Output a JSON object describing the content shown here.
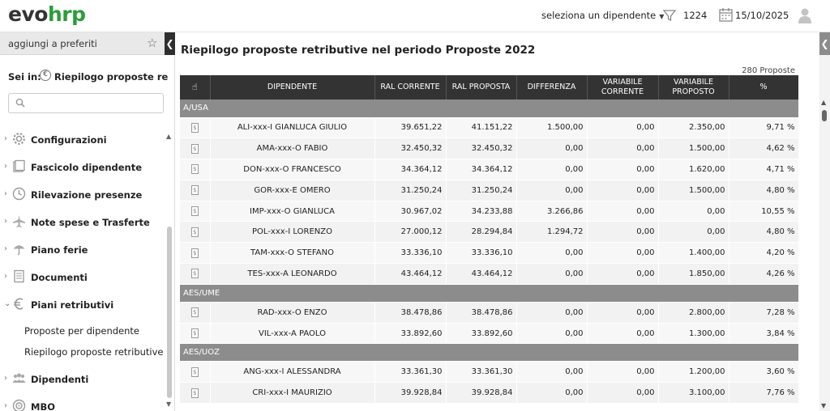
{
  "app": {
    "logo_main": "evo",
    "logo_accent": "hrp"
  },
  "header": {
    "employee_select": "seleziona un dipendente",
    "filter_count": "1224",
    "date": "15/10/2025"
  },
  "sidebar": {
    "favorites_label": "aggiungi a preferiti",
    "sei_in_label": "Sei in:",
    "sei_in_target": "Riepilogo proposte retributive",
    "search_placeholder": "",
    "items": [
      {
        "label": "Configurazioni",
        "icon": "gear-icon"
      },
      {
        "label": "Fascicolo dipendente",
        "icon": "folder-icon"
      },
      {
        "label": "Rilevazione presenze",
        "icon": "clock-icon"
      },
      {
        "label": "Note spese e Trasferte",
        "icon": "plane-icon"
      },
      {
        "label": "Piano ferie",
        "icon": "umbrella-icon"
      },
      {
        "label": "Documenti",
        "icon": "document-icon"
      },
      {
        "label": "Piani retributivi",
        "icon": "euro-icon"
      },
      {
        "label": "Dipendenti",
        "icon": "people-icon"
      },
      {
        "label": "MBO",
        "icon": "target-icon"
      }
    ],
    "sub_items": [
      "Proposte per dipendente",
      "Riepilogo proposte retributive"
    ]
  },
  "main": {
    "title": "Riepilogo proposte retributive nel periodo Proposte 2022",
    "count": "280 Proposte",
    "columns": [
      "DIPENDENTE",
      "RAL CORRENTE",
      "RAL PROPOSTA",
      "DIFFERENZA",
      "VARIABILE CORRENTE",
      "VARIABILE PROPOSTO",
      "%"
    ],
    "groups": [
      {
        "name": "A/USA",
        "rows": [
          [
            "ALI-xxx-I GIANLUCA GIULIO",
            "39.651,22",
            "41.151,22",
            "1.500,00",
            "0,00",
            "2.350,00",
            "9,71 %"
          ],
          [
            "AMA-xxx-O FABIO",
            "32.450,32",
            "32.450,32",
            "0,00",
            "0,00",
            "1.500,00",
            "4,62 %"
          ],
          [
            "DON-xxx-O FRANCESCO",
            "34.364,12",
            "34.364,12",
            "0,00",
            "0,00",
            "1.620,00",
            "4,71 %"
          ],
          [
            "GOR-xxx-E OMERO",
            "31.250,24",
            "31.250,24",
            "0,00",
            "0,00",
            "1.500,00",
            "4,80 %"
          ],
          [
            "IMP-xxx-O GIANLUCA",
            "30.967,02",
            "34.233,88",
            "3.266,86",
            "0,00",
            "0,00",
            "10,55 %"
          ],
          [
            "POL-xxx-I LORENZO",
            "27.000,12",
            "28.294,84",
            "1.294,72",
            "0,00",
            "0,00",
            "4,80 %"
          ],
          [
            "TAM-xxx-O STEFANO",
            "33.336,10",
            "33.336,10",
            "0,00",
            "0,00",
            "1.400,00",
            "4,20 %"
          ],
          [
            "TES-xxx-A LEONARDO",
            "43.464,12",
            "43.464,12",
            "0,00",
            "0,00",
            "1.850,00",
            "4,26 %"
          ]
        ]
      },
      {
        "name": "AES/UME",
        "rows": [
          [
            "RAD-xxx-O ENZO",
            "38.478,86",
            "38.478,86",
            "0,00",
            "0,00",
            "2.800,00",
            "7,28 %"
          ],
          [
            "VIL-xxx-A PAOLO",
            "33.892,60",
            "33.892,60",
            "0,00",
            "0,00",
            "1.300,00",
            "3,84 %"
          ]
        ]
      },
      {
        "name": "AES/UOZ",
        "rows": [
          [
            "ANG-xxx-I ALESSANDRA",
            "33.361,30",
            "33.361,30",
            "0,00",
            "0,00",
            "1.200,00",
            "3,60 %"
          ],
          [
            "CRI-xxx-I MAURIZIO",
            "39.928,84",
            "39.928,84",
            "0,00",
            "0,00",
            "3.100,00",
            "7,76 %"
          ]
        ]
      }
    ]
  },
  "colors": {
    "accent": "#2a9d3a",
    "header_bg": "#333333",
    "group_bg": "#8c8c8c"
  }
}
